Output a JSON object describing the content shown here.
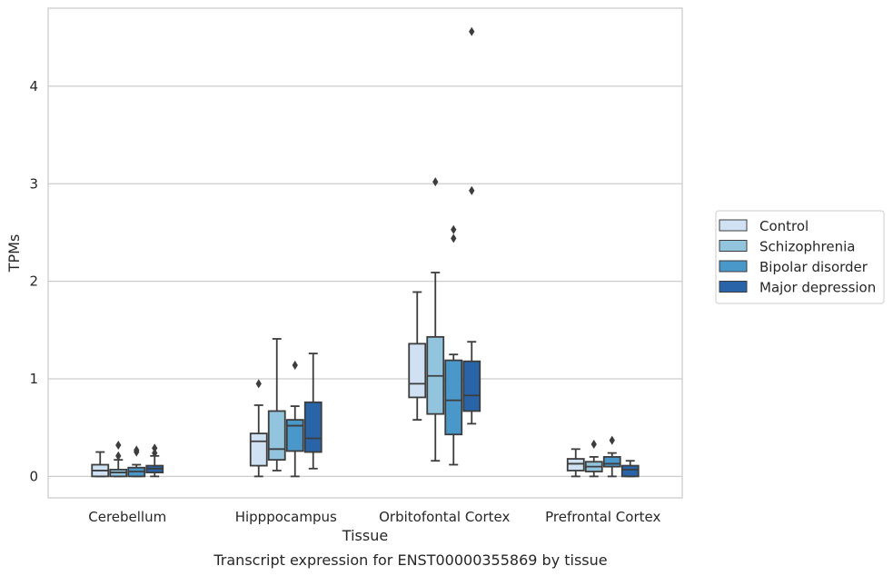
{
  "chart_data": {
    "type": "box",
    "caption": "Transcript expression for ENST00000355869 by tissue",
    "xlabel": "Tissue",
    "ylabel": "TPMs",
    "ylim": [
      -0.22,
      4.8
    ],
    "yticks": [
      0,
      1,
      2,
      3,
      4
    ],
    "grid": "horizontal",
    "legend_position": "right",
    "categories": [
      "Cerebellum",
      "Hipppocampus",
      "Orbitofontal Cortex",
      "Prefrontal Cortex"
    ],
    "series": [
      {
        "name": "Control",
        "color": "#cfe1f2",
        "boxes": [
          {
            "whislo": 0.0,
            "q1": 0.0,
            "med": 0.06,
            "q3": 0.12,
            "whishi": 0.25,
            "fliers": []
          },
          {
            "whislo": 0.0,
            "q1": 0.11,
            "med": 0.36,
            "q3": 0.44,
            "whishi": 0.73,
            "fliers": [
              0.95
            ]
          },
          {
            "whislo": 0.58,
            "q1": 0.81,
            "med": 0.95,
            "q3": 1.36,
            "whishi": 1.89,
            "fliers": []
          },
          {
            "whislo": 0.0,
            "q1": 0.06,
            "med": 0.13,
            "q3": 0.18,
            "whishi": 0.28,
            "fliers": []
          }
        ]
      },
      {
        "name": "Schizophrenia",
        "color": "#93c4de",
        "boxes": [
          {
            "whislo": 0.0,
            "q1": 0.0,
            "med": 0.04,
            "q3": 0.07,
            "whishi": 0.17,
            "fliers": [
              0.21,
              0.32
            ]
          },
          {
            "whislo": 0.06,
            "q1": 0.17,
            "med": 0.28,
            "q3": 0.67,
            "whishi": 1.41,
            "fliers": []
          },
          {
            "whislo": 0.16,
            "q1": 0.64,
            "med": 1.03,
            "q3": 1.43,
            "whishi": 2.09,
            "fliers": [
              3.02
            ]
          },
          {
            "whislo": 0.0,
            "q1": 0.05,
            "med": 0.1,
            "q3": 0.15,
            "whishi": 0.2,
            "fliers": [
              0.33
            ]
          }
        ]
      },
      {
        "name": "Bipolar disorder",
        "color": "#4a98c9",
        "boxes": [
          {
            "whislo": 0.0,
            "q1": 0.0,
            "med": 0.05,
            "q3": 0.09,
            "whishi": 0.12,
            "fliers": [
              0.25,
              0.27
            ]
          },
          {
            "whislo": 0.0,
            "q1": 0.26,
            "med": 0.52,
            "q3": 0.58,
            "whishi": 0.72,
            "fliers": [
              1.14
            ]
          },
          {
            "whislo": 0.12,
            "q1": 0.43,
            "med": 0.78,
            "q3": 1.19,
            "whishi": 1.25,
            "fliers": [
              2.44,
              2.53
            ]
          },
          {
            "whislo": 0.0,
            "q1": 0.1,
            "med": 0.13,
            "q3": 0.2,
            "whishi": 0.24,
            "fliers": [
              0.37
            ]
          }
        ]
      },
      {
        "name": "Major depression",
        "color": "#2964a8",
        "boxes": [
          {
            "whislo": 0.0,
            "q1": 0.04,
            "med": 0.08,
            "q3": 0.11,
            "whishi": 0.21,
            "fliers": [
              0.24,
              0.29
            ]
          },
          {
            "whislo": 0.08,
            "q1": 0.25,
            "med": 0.39,
            "q3": 0.76,
            "whishi": 1.26,
            "fliers": []
          },
          {
            "whislo": 0.54,
            "q1": 0.67,
            "med": 0.83,
            "q3": 1.18,
            "whishi": 1.38,
            "fliers": [
              2.93,
              4.56
            ]
          },
          {
            "whislo": 0.0,
            "q1": 0.0,
            "med": 0.07,
            "q3": 0.11,
            "whishi": 0.16,
            "fliers": []
          }
        ]
      }
    ]
  }
}
